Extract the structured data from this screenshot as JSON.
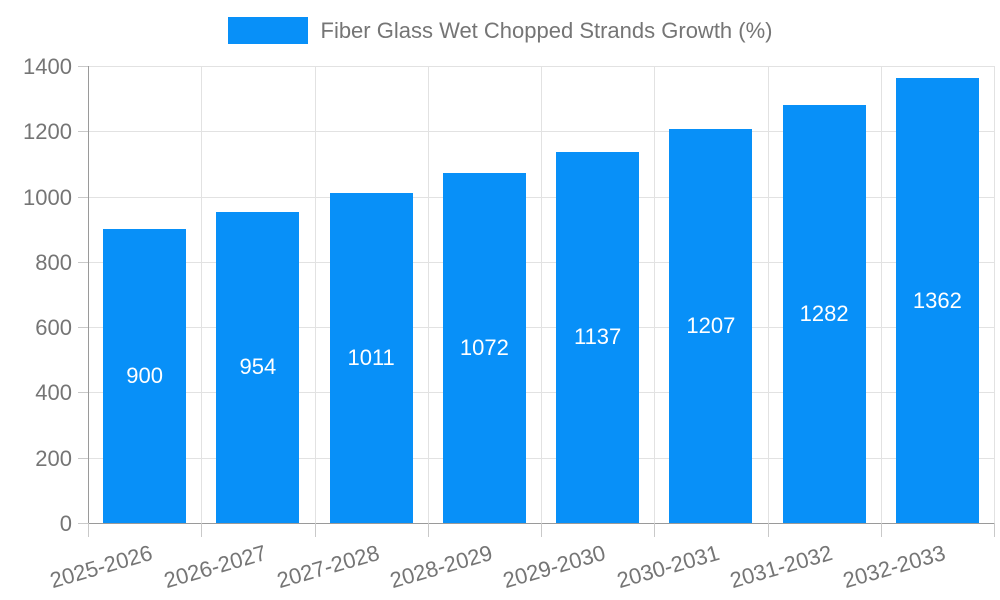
{
  "chart_data": {
    "type": "bar",
    "legend": "Fiber Glass Wet Chopped Strands Growth (%)",
    "legend_position": "top-center",
    "categories": [
      "2025-2026",
      "2026-2027",
      "2027-2028",
      "2028-2029",
      "2029-2030",
      "2030-2031",
      "2031-2032",
      "2032-2033"
    ],
    "values": [
      900,
      954,
      1011,
      1072,
      1137,
      1207,
      1282,
      1362
    ],
    "value_labels_shown": true,
    "xlabel": "",
    "ylabel": "",
    "ylim": [
      0,
      1400
    ],
    "ytick_step": 200,
    "yticks": [
      0,
      200,
      400,
      600,
      800,
      1000,
      1200,
      1400
    ],
    "grid": true,
    "x_label_rotation_deg": -16,
    "colors": {
      "bar": "#0890f8",
      "grid": "#e2e2e2",
      "axis": "#9a9a9a",
      "tick": "#c9c9c9",
      "text": "#757575",
      "value_label": "#ffffff",
      "background": "#ffffff"
    }
  }
}
